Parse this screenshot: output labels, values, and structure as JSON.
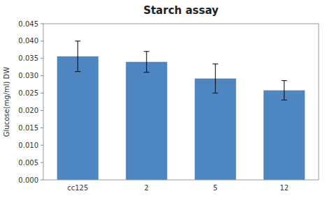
{
  "chart_data": {
    "type": "bar",
    "title": "Starch assay",
    "ylabel": "Glucose(mg/ml) DW",
    "categories": [
      "cc125",
      "2",
      "5",
      "12"
    ],
    "values": [
      0.0356,
      0.034,
      0.0292,
      0.0258
    ],
    "errors": [
      0.0044,
      0.003,
      0.0042,
      0.0028
    ],
    "color": "#4e86c2",
    "ylim": [
      0,
      0.045
    ],
    "yticks": [
      {
        "value": 0,
        "label": "0.000"
      },
      0.005,
      {
        "value": 0.01,
        "label": "0.010"
      },
      0.015,
      {
        "value": 0.02,
        "label": "0.020"
      },
      0.025,
      {
        "value": 0.03,
        "label": "0.030"
      },
      0.035,
      {
        "value": 0.04,
        "label": "0.040"
      },
      0.045
    ],
    "grid": false
  }
}
